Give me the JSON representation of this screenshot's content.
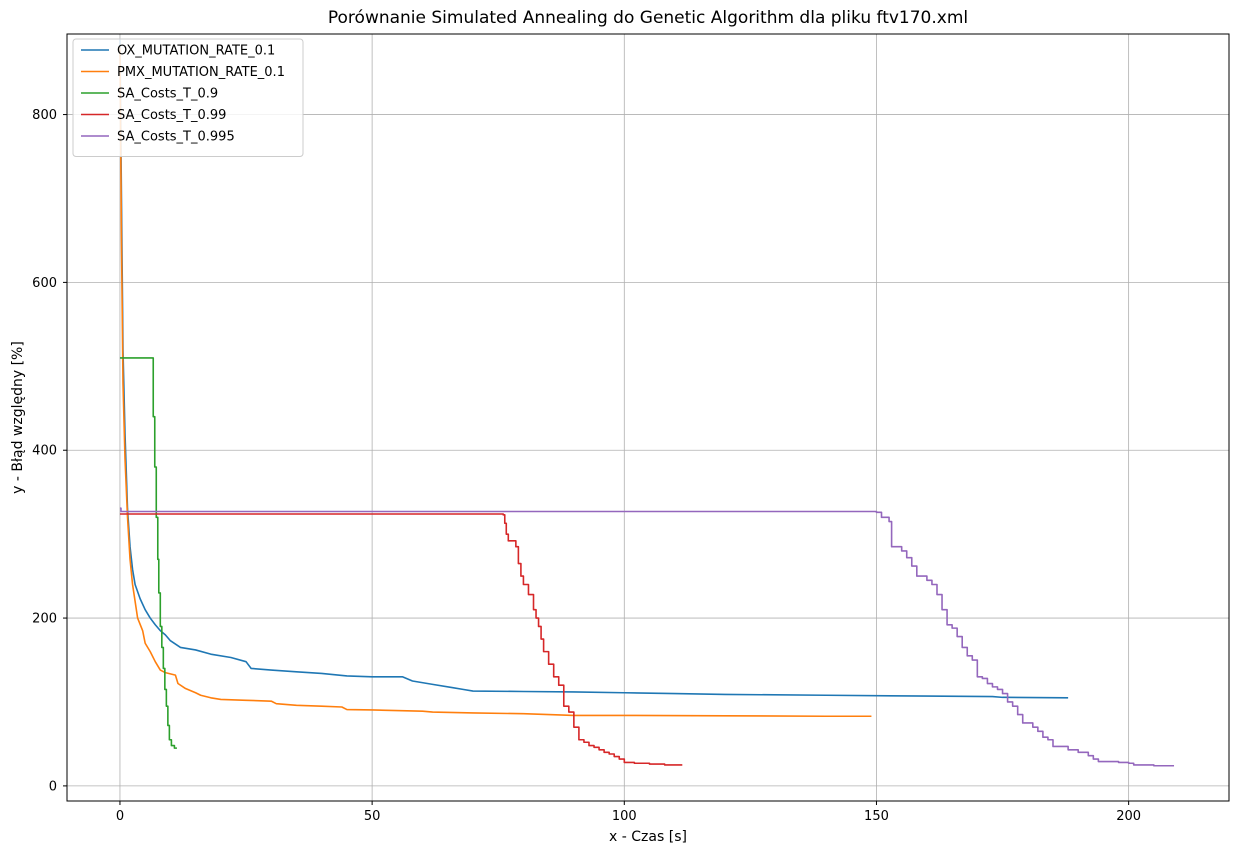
{
  "chart_data": {
    "type": "line",
    "title": "Porównanie Simulated Annealing do Genetic Algorithm dla pliku ftv170.xml",
    "xlabel": "x - Czas [s]",
    "ylabel": "y - Błąd względny [%]",
    "xlim": [
      -10.5,
      219.9
    ],
    "ylim": [
      -18,
      896
    ],
    "xticks": [
      0,
      50,
      100,
      150,
      200
    ],
    "yticks": [
      0,
      200,
      400,
      600,
      800
    ],
    "grid": true,
    "legend_position": "top-left",
    "series": [
      {
        "name": "OX_MUTATION_RATE_0.1",
        "color": "#1f77b4",
        "step": false,
        "points": [
          [
            0,
            890
          ],
          [
            0.3,
            700
          ],
          [
            0.6,
            520
          ],
          [
            1,
            420
          ],
          [
            1.5,
            330
          ],
          [
            2,
            285
          ],
          [
            2.5,
            258
          ],
          [
            3,
            240
          ],
          [
            4,
            223
          ],
          [
            5,
            210
          ],
          [
            6,
            200
          ],
          [
            7,
            192
          ],
          [
            8,
            185
          ],
          [
            9,
            180
          ],
          [
            10,
            173
          ],
          [
            12,
            165
          ],
          [
            15,
            162
          ],
          [
            18,
            157
          ],
          [
            22,
            153
          ],
          [
            25,
            148
          ],
          [
            26,
            140
          ],
          [
            30,
            138
          ],
          [
            35,
            136
          ],
          [
            40,
            134
          ],
          [
            45,
            131
          ],
          [
            50,
            130
          ],
          [
            56,
            130
          ],
          [
            58,
            125
          ],
          [
            62,
            121
          ],
          [
            66,
            117
          ],
          [
            68,
            115
          ],
          [
            70,
            113
          ],
          [
            80,
            112.5
          ],
          [
            90,
            112
          ],
          [
            100,
            111
          ],
          [
            110,
            110
          ],
          [
            120,
            109
          ],
          [
            140,
            108
          ],
          [
            160,
            107
          ],
          [
            173,
            106.5
          ],
          [
            175,
            105.5
          ],
          [
            188,
            105
          ]
        ]
      },
      {
        "name": "PMX_MUTATION_RATE_0.1",
        "color": "#ff7f0e",
        "step": false,
        "points": [
          [
            0,
            880
          ],
          [
            0.3,
            650
          ],
          [
            0.6,
            480
          ],
          [
            1,
            390
          ],
          [
            1.5,
            320
          ],
          [
            2,
            270
          ],
          [
            2.5,
            240
          ],
          [
            3,
            220
          ],
          [
            3.5,
            200
          ],
          [
            4.5,
            185
          ],
          [
            5,
            170
          ],
          [
            6,
            160
          ],
          [
            7,
            148
          ],
          [
            8,
            138
          ],
          [
            9,
            135
          ],
          [
            11,
            132
          ],
          [
            11.5,
            122
          ],
          [
            13,
            116
          ],
          [
            15,
            111
          ],
          [
            16,
            108
          ],
          [
            18,
            105
          ],
          [
            20,
            103
          ],
          [
            25,
            102
          ],
          [
            30,
            101
          ],
          [
            31,
            98
          ],
          [
            35,
            96
          ],
          [
            40,
            95
          ],
          [
            44,
            94
          ],
          [
            45,
            91
          ],
          [
            50,
            90.5
          ],
          [
            60,
            89
          ],
          [
            62,
            88
          ],
          [
            70,
            87
          ],
          [
            80,
            86
          ],
          [
            85,
            85
          ],
          [
            90,
            84
          ],
          [
            100,
            84
          ],
          [
            120,
            83.5
          ],
          [
            140,
            83
          ],
          [
            149,
            83
          ]
        ]
      },
      {
        "name": "SA_Costs_T_0.9",
        "color": "#2ca02c",
        "step": true,
        "points": [
          [
            0,
            510
          ],
          [
            6.3,
            510
          ],
          [
            6.6,
            440
          ],
          [
            6.9,
            380
          ],
          [
            7.2,
            320
          ],
          [
            7.5,
            270
          ],
          [
            7.7,
            230
          ],
          [
            8,
            190
          ],
          [
            8.3,
            165
          ],
          [
            8.6,
            140
          ],
          [
            8.9,
            115
          ],
          [
            9.2,
            95
          ],
          [
            9.5,
            72
          ],
          [
            9.8,
            55
          ],
          [
            10.2,
            48
          ],
          [
            10.8,
            45
          ],
          [
            11.3,
            45
          ]
        ]
      },
      {
        "name": "SA_Costs_T_0.99",
        "color": "#d62728",
        "step": true,
        "points": [
          [
            0,
            324
          ],
          [
            76,
            323
          ],
          [
            76.3,
            313
          ],
          [
            76.6,
            300
          ],
          [
            77,
            292
          ],
          [
            78.5,
            285
          ],
          [
            79,
            265
          ],
          [
            79.5,
            250
          ],
          [
            80,
            240
          ],
          [
            81,
            228
          ],
          [
            82,
            210
          ],
          [
            82.5,
            200
          ],
          [
            83,
            190
          ],
          [
            83.5,
            175
          ],
          [
            84,
            160
          ],
          [
            85,
            145
          ],
          [
            86,
            130
          ],
          [
            87,
            120
          ],
          [
            88,
            95
          ],
          [
            89,
            88
          ],
          [
            90,
            70
          ],
          [
            91,
            55
          ],
          [
            92,
            52
          ],
          [
            93,
            48
          ],
          [
            94,
            46
          ],
          [
            95,
            43
          ],
          [
            96,
            40
          ],
          [
            97,
            38
          ],
          [
            98,
            35
          ],
          [
            99,
            32
          ],
          [
            100,
            28
          ],
          [
            102,
            27
          ],
          [
            105,
            26
          ],
          [
            108,
            25
          ],
          [
            111.5,
            25
          ]
        ]
      },
      {
        "name": "SA_Costs_T_0.995",
        "color": "#9467bd",
        "step": true,
        "points": [
          [
            0,
            331
          ],
          [
            0.2,
            327
          ],
          [
            150,
            326
          ],
          [
            151,
            320
          ],
          [
            152.5,
            315
          ],
          [
            153,
            285
          ],
          [
            155,
            280
          ],
          [
            156,
            272
          ],
          [
            157,
            262
          ],
          [
            158,
            250
          ],
          [
            160,
            245
          ],
          [
            161,
            240
          ],
          [
            162,
            228
          ],
          [
            163,
            210
          ],
          [
            164,
            192
          ],
          [
            165,
            188
          ],
          [
            166,
            178
          ],
          [
            167,
            165
          ],
          [
            168,
            155
          ],
          [
            169,
            150
          ],
          [
            170,
            130
          ],
          [
            171,
            128
          ],
          [
            172,
            122
          ],
          [
            173,
            118
          ],
          [
            174,
            115
          ],
          [
            175,
            110
          ],
          [
            176,
            100
          ],
          [
            177,
            95
          ],
          [
            178,
            85
          ],
          [
            179,
            75
          ],
          [
            181,
            70
          ],
          [
            182,
            65
          ],
          [
            183,
            58
          ],
          [
            184,
            55
          ],
          [
            185,
            47
          ],
          [
            188,
            43
          ],
          [
            190,
            40
          ],
          [
            192,
            36
          ],
          [
            193,
            32
          ],
          [
            194,
            29
          ],
          [
            198,
            28
          ],
          [
            200,
            27
          ],
          [
            201,
            25
          ],
          [
            205,
            24
          ],
          [
            209,
            24
          ]
        ]
      }
    ]
  }
}
